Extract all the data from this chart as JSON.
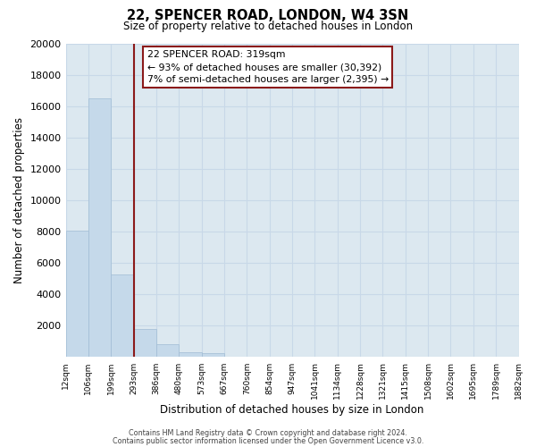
{
  "title": "22, SPENCER ROAD, LONDON, W4 3SN",
  "subtitle": "Size of property relative to detached houses in London",
  "xlabel": "Distribution of detached houses by size in London",
  "ylabel": "Number of detached properties",
  "bar_heights": [
    8100,
    16500,
    5300,
    1800,
    800,
    300,
    250,
    0,
    0,
    0,
    0,
    0,
    0,
    0,
    0,
    0,
    0,
    0,
    0,
    0
  ],
  "bar_color": "#c5d9ea",
  "bar_edge_color": "#a0bcd4",
  "highlight_color": "#8b1a1a",
  "highlight_bar_index": 2,
  "annotation_title": "22 SPENCER ROAD: 319sqm",
  "annotation_line1": "← 93% of detached houses are smaller (30,392)",
  "annotation_line2": "7% of semi-detached houses are larger (2,395) →",
  "annotation_box_color": "#ffffff",
  "annotation_box_edge": "#8b1a1a",
  "ylim": [
    0,
    20000
  ],
  "yticks": [
    0,
    2000,
    4000,
    6000,
    8000,
    10000,
    12000,
    14000,
    16000,
    18000,
    20000
  ],
  "tick_labels": [
    "12sqm",
    "106sqm",
    "199sqm",
    "293sqm",
    "386sqm",
    "480sqm",
    "573sqm",
    "667sqm",
    "760sqm",
    "854sqm",
    "947sqm",
    "1041sqm",
    "1134sqm",
    "1228sqm",
    "1321sqm",
    "1415sqm",
    "1508sqm",
    "1602sqm",
    "1695sqm",
    "1789sqm",
    "1882sqm"
  ],
  "footer_line1": "Contains HM Land Registry data © Crown copyright and database right 2024.",
  "footer_line2": "Contains public sector information licensed under the Open Government Licence v3.0.",
  "grid_color": "#c8d8e8",
  "bg_color": "#dce8f0"
}
